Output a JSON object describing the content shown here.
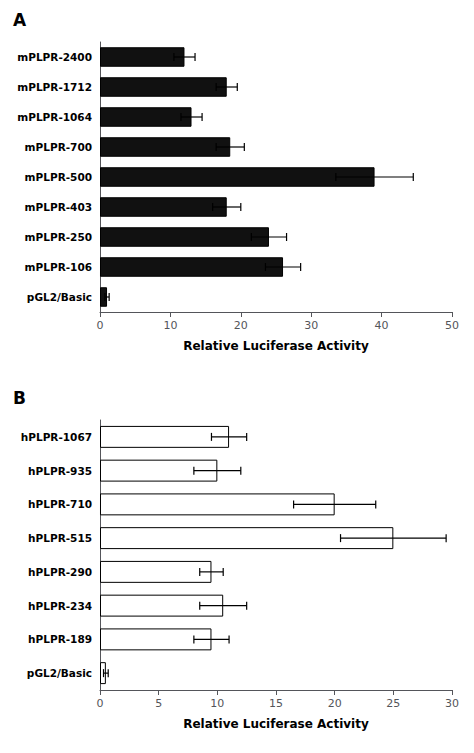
{
  "chart_data": [
    {
      "type": "bar",
      "title": "A",
      "orientation": "horizontal",
      "categories": [
        "mPLPR-2400",
        "mPLPR-1712",
        "mPLPR-1064",
        "mPLPR-700",
        "mPLPR-500",
        "mPLPR-403",
        "mPLPR-250",
        "mPLPR-106",
        "pGL2/Basic"
      ],
      "values": [
        12,
        18,
        13,
        18.5,
        39,
        18,
        24,
        26,
        1
      ],
      "errors": [
        1.5,
        1.5,
        1.5,
        2.0,
        5.5,
        2.0,
        2.5,
        2.5,
        0.3
      ],
      "color": "#111111",
      "xlim": [
        0,
        50
      ],
      "xticks": [
        0,
        10,
        20,
        30,
        40,
        50
      ],
      "xlabel": "Relative Luciferase Activity",
      "grid": false
    },
    {
      "type": "bar",
      "title": "B",
      "orientation": "horizontal",
      "categories": [
        "hPLPR-1067",
        "hPLPR-935",
        "hPLPR-710",
        "hPLPR-515",
        "hPLPR-290",
        "hPLPR-234",
        "hPLPR-189",
        "pGL2/Basic"
      ],
      "values": [
        11,
        10,
        20,
        25,
        9.5,
        10.5,
        9.5,
        0.5
      ],
      "errors": [
        1.5,
        2.0,
        3.5,
        4.5,
        1.0,
        2.0,
        1.5,
        0.2
      ],
      "color": "#ffffff",
      "xlim": [
        0,
        30
      ],
      "xticks": [
        0,
        5,
        10,
        15,
        20,
        25,
        30
      ],
      "xlabel": "Relative Luciferase Activity",
      "grid": false
    }
  ]
}
